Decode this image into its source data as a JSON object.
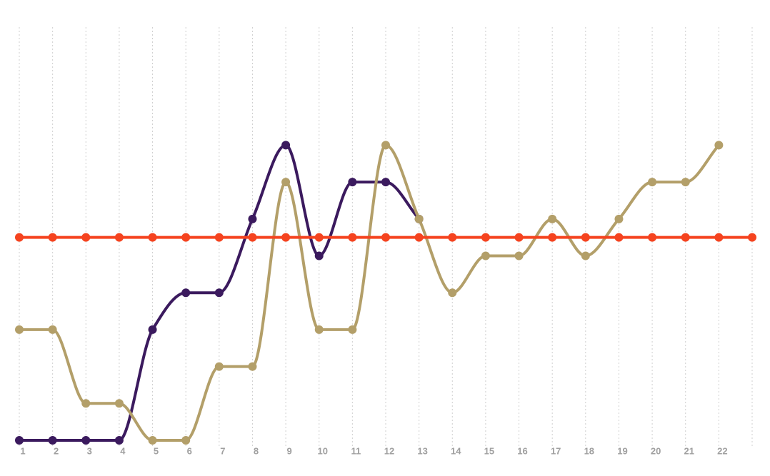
{
  "chart_data": {
    "type": "line",
    "categories": [
      "1",
      "2",
      "3",
      "4",
      "5",
      "6",
      "7",
      "8",
      "9",
      "10",
      "11",
      "12",
      "13",
      "14",
      "15",
      "16",
      "17",
      "18",
      "19",
      "20",
      "21",
      "22",
      null
    ],
    "series": [
      {
        "color": "#3b1a5e",
        "values": [
          0,
          0,
          0,
          0,
          3,
          4,
          4,
          6,
          8,
          5,
          7,
          7,
          6,
          null,
          null,
          null,
          null,
          null,
          null,
          null,
          null,
          null,
          null
        ]
      },
      {
        "color": "#b39f69",
        "values": [
          3,
          3,
          1,
          1,
          0,
          0,
          2,
          2,
          7,
          3,
          3,
          8,
          6,
          4,
          5,
          5,
          6,
          5,
          6,
          7,
          7,
          8,
          null
        ]
      },
      {
        "color": "#f5431f",
        "values": [
          5.5,
          5.5,
          5.5,
          5.5,
          5.5,
          5.5,
          5.5,
          5.5,
          5.5,
          5.5,
          5.5,
          5.5,
          5.5,
          5.5,
          5.5,
          5.5,
          5.5,
          5.5,
          5.5,
          5.5,
          5.5,
          5.5,
          5.5
        ]
      }
    ],
    "ylim": [
      0,
      11.2
    ],
    "grid": true
  }
}
